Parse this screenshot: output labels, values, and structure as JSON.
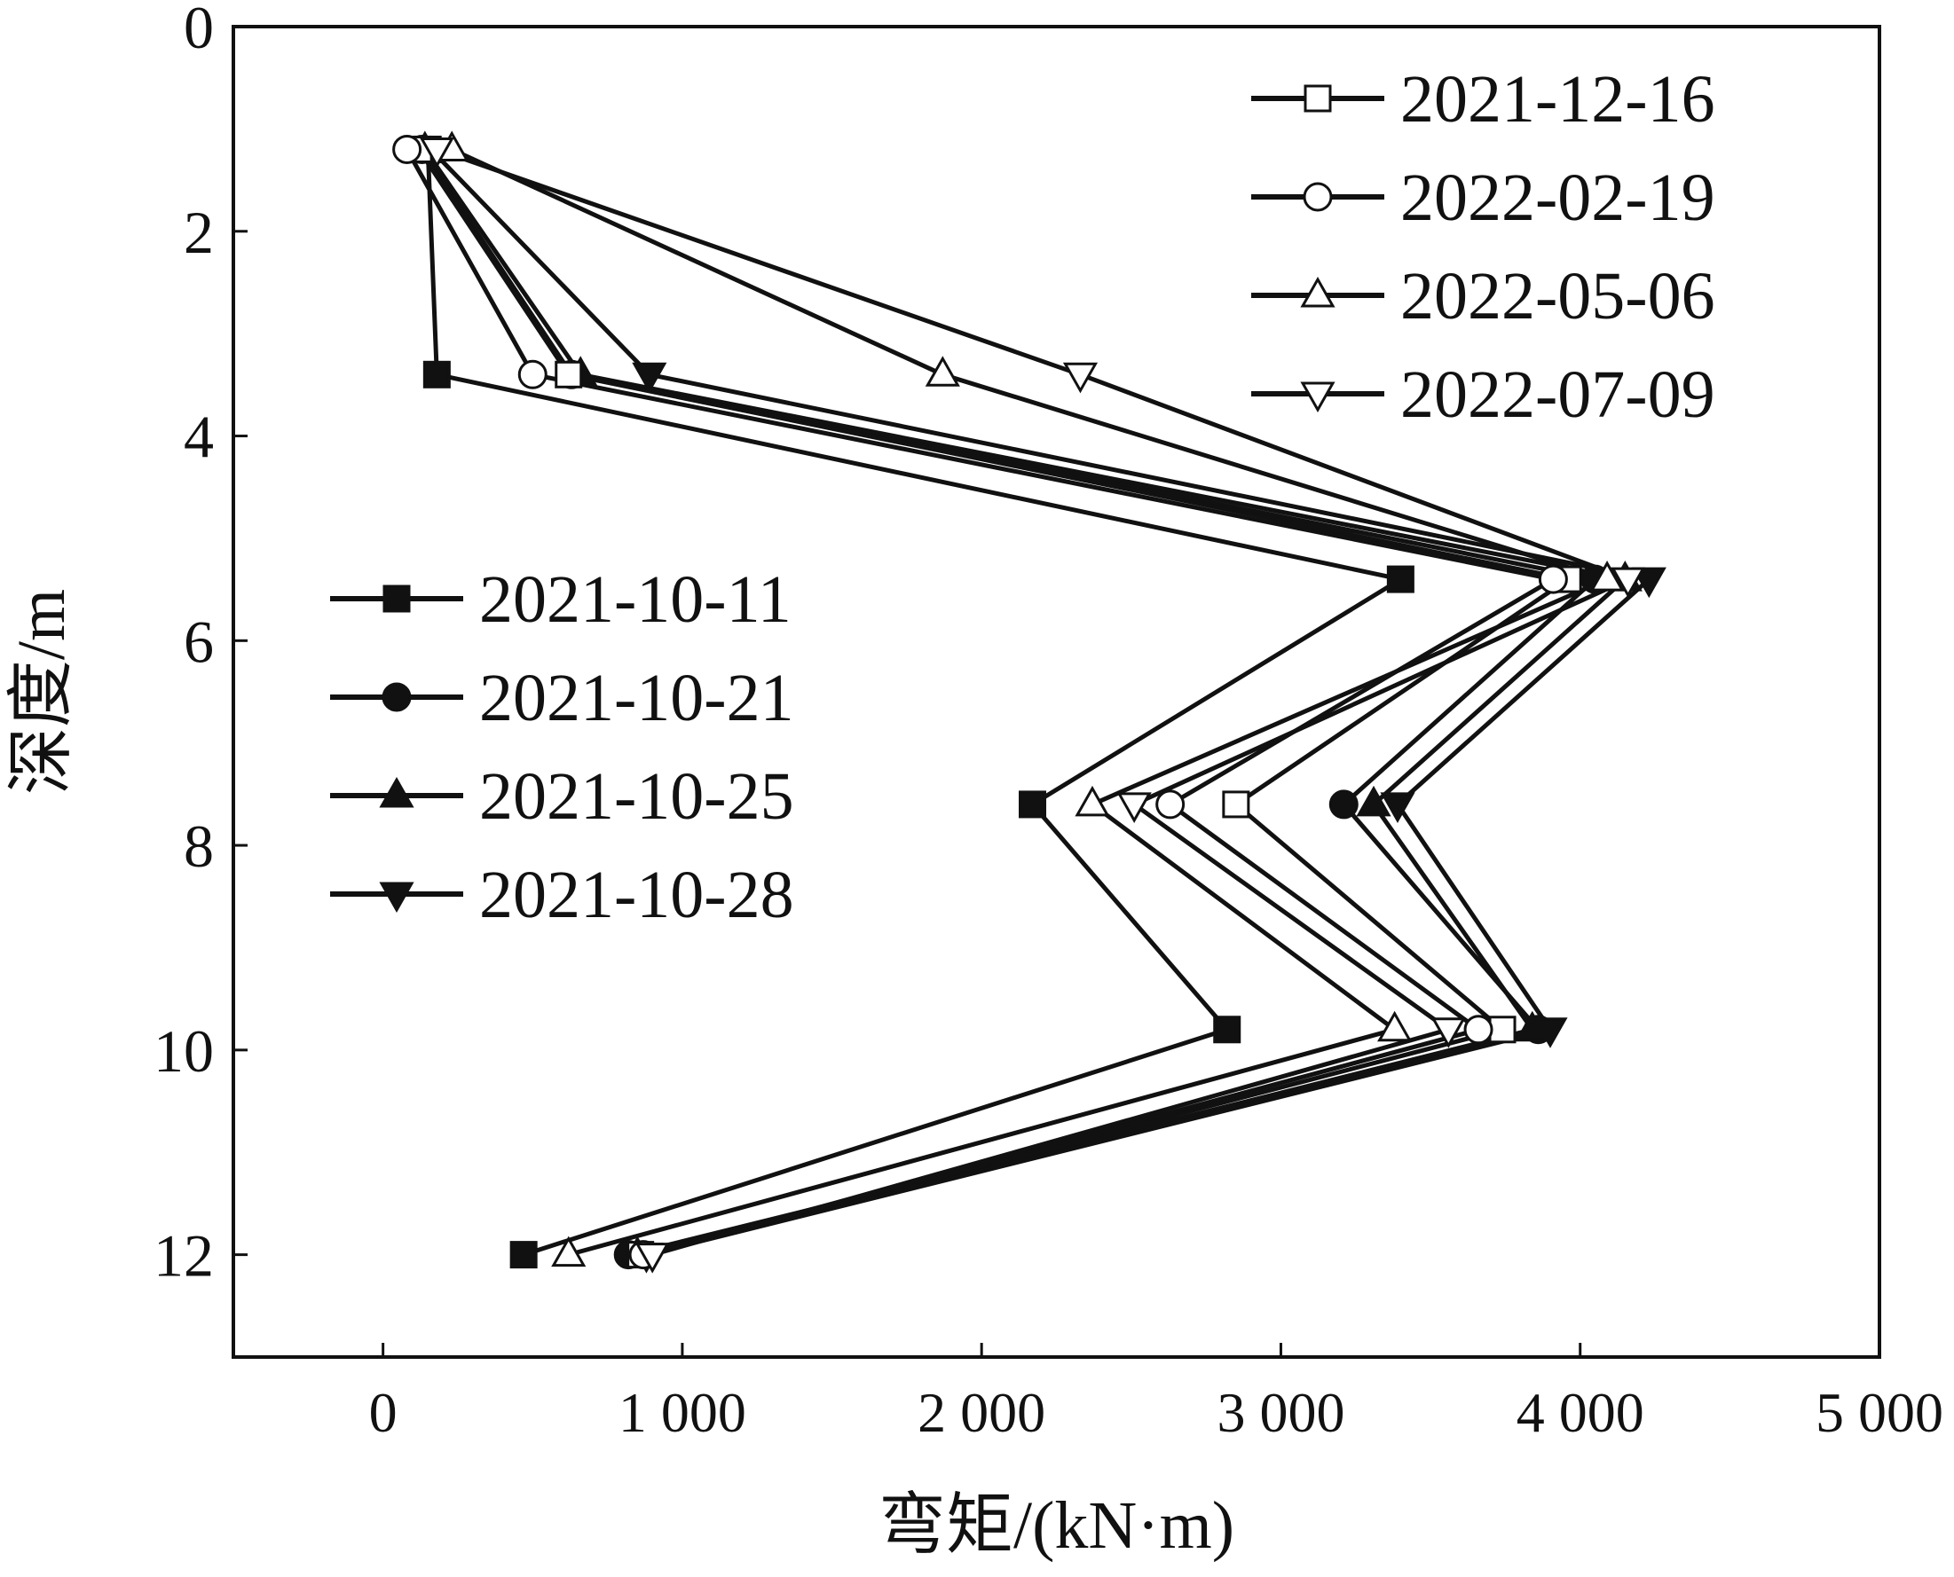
{
  "chart_data": {
    "type": "line",
    "xlabel": "弯矩/(kN·m)",
    "ylabel": "深度/m",
    "xlim": [
      -500,
      5000
    ],
    "ylim": [
      0,
      13
    ],
    "y_inverted": true,
    "x_ticks": [
      0,
      1000,
      2000,
      3000,
      4000,
      5000
    ],
    "x_tick_labels": [
      "0",
      "1 000",
      "2 000",
      "3 000",
      "4 000",
      "5 000"
    ],
    "y_ticks": [
      0,
      2,
      4,
      6,
      8,
      10,
      12
    ],
    "y_tick_labels": [
      "0",
      "2",
      "4",
      "6",
      "8",
      "10",
      "12"
    ],
    "grid": false,
    "line_color": "#111111",
    "legends": [
      {
        "placement": "middle-left",
        "series": [
          0,
          1,
          2,
          3
        ]
      },
      {
        "placement": "top-right",
        "series": [
          4,
          5,
          6,
          7
        ]
      }
    ],
    "series": [
      {
        "name": "2021-10-11",
        "marker": "square-filled",
        "points": [
          [
            150,
            1.2
          ],
          [
            180,
            3.4
          ],
          [
            3400,
            5.4
          ],
          [
            2170,
            7.6
          ],
          [
            2820,
            9.8
          ],
          [
            470,
            12.0
          ]
        ]
      },
      {
        "name": "2021-10-21",
        "marker": "circle-filled",
        "points": [
          [
            130,
            1.2
          ],
          [
            630,
            3.4
          ],
          [
            4050,
            5.4
          ],
          [
            3210,
            7.6
          ],
          [
            3860,
            9.8
          ],
          [
            820,
            12.0
          ]
        ]
      },
      {
        "name": "2021-10-25",
        "marker": "triangle-up-filled",
        "points": [
          [
            140,
            1.2
          ],
          [
            660,
            3.4
          ],
          [
            4150,
            5.4
          ],
          [
            3310,
            7.6
          ],
          [
            3840,
            9.8
          ],
          [
            850,
            12.0
          ]
        ]
      },
      {
        "name": "2021-10-28",
        "marker": "triangle-down-filled",
        "points": [
          [
            160,
            1.2
          ],
          [
            890,
            3.4
          ],
          [
            4230,
            5.4
          ],
          [
            3390,
            7.6
          ],
          [
            3900,
            9.8
          ],
          [
            880,
            12.0
          ]
        ]
      },
      {
        "name": "2021-12-16",
        "marker": "square-open",
        "points": [
          [
            120,
            1.2
          ],
          [
            620,
            3.4
          ],
          [
            3960,
            5.4
          ],
          [
            2850,
            7.6
          ],
          [
            3740,
            9.8
          ],
          [
            860,
            12.0
          ]
        ]
      },
      {
        "name": "2022-02-19",
        "marker": "circle-open",
        "points": [
          [
            80,
            1.2
          ],
          [
            500,
            3.4
          ],
          [
            3910,
            5.4
          ],
          [
            2630,
            7.6
          ],
          [
            3660,
            9.8
          ],
          [
            870,
            12.0
          ]
        ]
      },
      {
        "name": "2022-05-06",
        "marker": "triangle-up-open",
        "points": [
          [
            230,
            1.2
          ],
          [
            1870,
            3.4
          ],
          [
            4090,
            5.4
          ],
          [
            2370,
            7.6
          ],
          [
            3380,
            9.8
          ],
          [
            620,
            12.0
          ]
        ]
      },
      {
        "name": "2022-07-09",
        "marker": "triangle-down-open",
        "points": [
          [
            180,
            1.2
          ],
          [
            2330,
            3.4
          ],
          [
            4160,
            5.4
          ],
          [
            2510,
            7.6
          ],
          [
            3560,
            9.8
          ],
          [
            900,
            12.0
          ]
        ]
      }
    ]
  }
}
